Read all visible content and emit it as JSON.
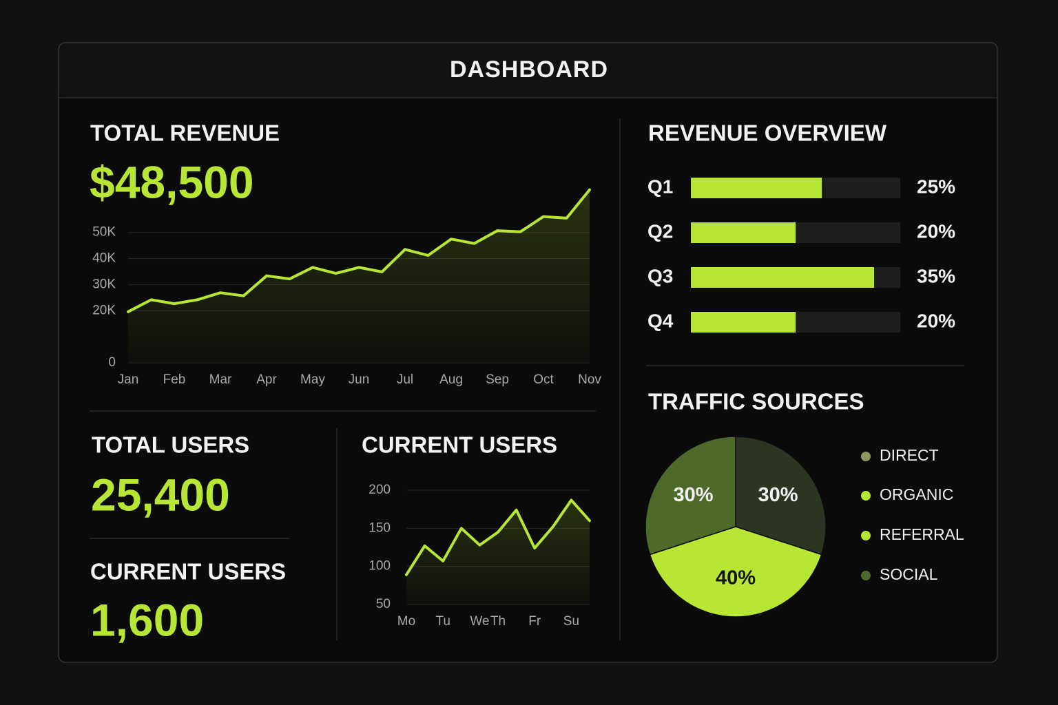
{
  "header": {
    "title": "DASHBOARD"
  },
  "kpis": [
    {
      "label": "TOTAL REVENUE",
      "value": "$48,500"
    },
    {
      "label": "TOTAL USERS",
      "value": "25,400"
    },
    {
      "label": "CURRENT USERS",
      "value": "1,600"
    }
  ],
  "chart_data": [
    {
      "type": "line",
      "categories": [
        "Jan",
        null,
        "Feb",
        null,
        "Mar",
        null,
        "Apr",
        null,
        "May",
        null,
        "Jun",
        null,
        "Jul",
        null,
        "Aug",
        null,
        "Sep",
        null,
        "Oct",
        null,
        "Nov"
      ],
      "values": [
        19600,
        24200,
        22700,
        24200,
        26900,
        25700,
        33400,
        32200,
        36600,
        34300,
        36600,
        34900,
        43500,
        41200,
        47500,
        45800,
        50700,
        50300,
        56100,
        55500,
        66400
      ],
      "color": "#b8e635",
      "ylim": [
        0,
        70000
      ],
      "yticks": [
        0,
        {
          "value": 20000,
          "label": "20K"
        },
        {
          "value": 30000,
          "label": "30K"
        },
        {
          "value": 40000,
          "label": "40K"
        },
        {
          "value": 50000,
          "label": "50K"
        }
      ],
      "grid": true
    },
    {
      "type": "line",
      "title": "CURRENT USERS",
      "categories": [
        "Mo",
        null,
        "Tu",
        null,
        "We",
        "Th",
        null,
        "Fr",
        null,
        "Su",
        null
      ],
      "values": [
        89,
        127,
        107,
        150,
        128,
        145,
        174,
        124,
        152,
        187,
        160
      ],
      "color": "#b8e635",
      "ylim": [
        50,
        200
      ],
      "yticks": [
        50,
        100,
        150,
        200
      ],
      "grid": true
    },
    {
      "type": "hbar",
      "title": "REVENUE OVERVIEW",
      "categories": [
        "Q1",
        "Q2",
        "Q3",
        "Q4"
      ],
      "values": [
        25,
        20,
        35,
        20
      ],
      "value_labels": [
        "25%",
        "20%",
        "35%",
        "20%"
      ],
      "color": "#b8e635",
      "xlim": [
        0,
        40
      ]
    },
    {
      "type": "pie",
      "title": "TRAFFIC SOURCES",
      "categories": [
        "DIRECT",
        "ORGANIC",
        "REFERRAL",
        "SOCIAL"
      ],
      "values": [
        30,
        40,
        null,
        30
      ],
      "value_labels": [
        "30%",
        "40%",
        null,
        "30%"
      ],
      "colors": [
        "#2c3522",
        "#b8e635",
        "#b8e635",
        "#4d6a2a"
      ]
    }
  ]
}
